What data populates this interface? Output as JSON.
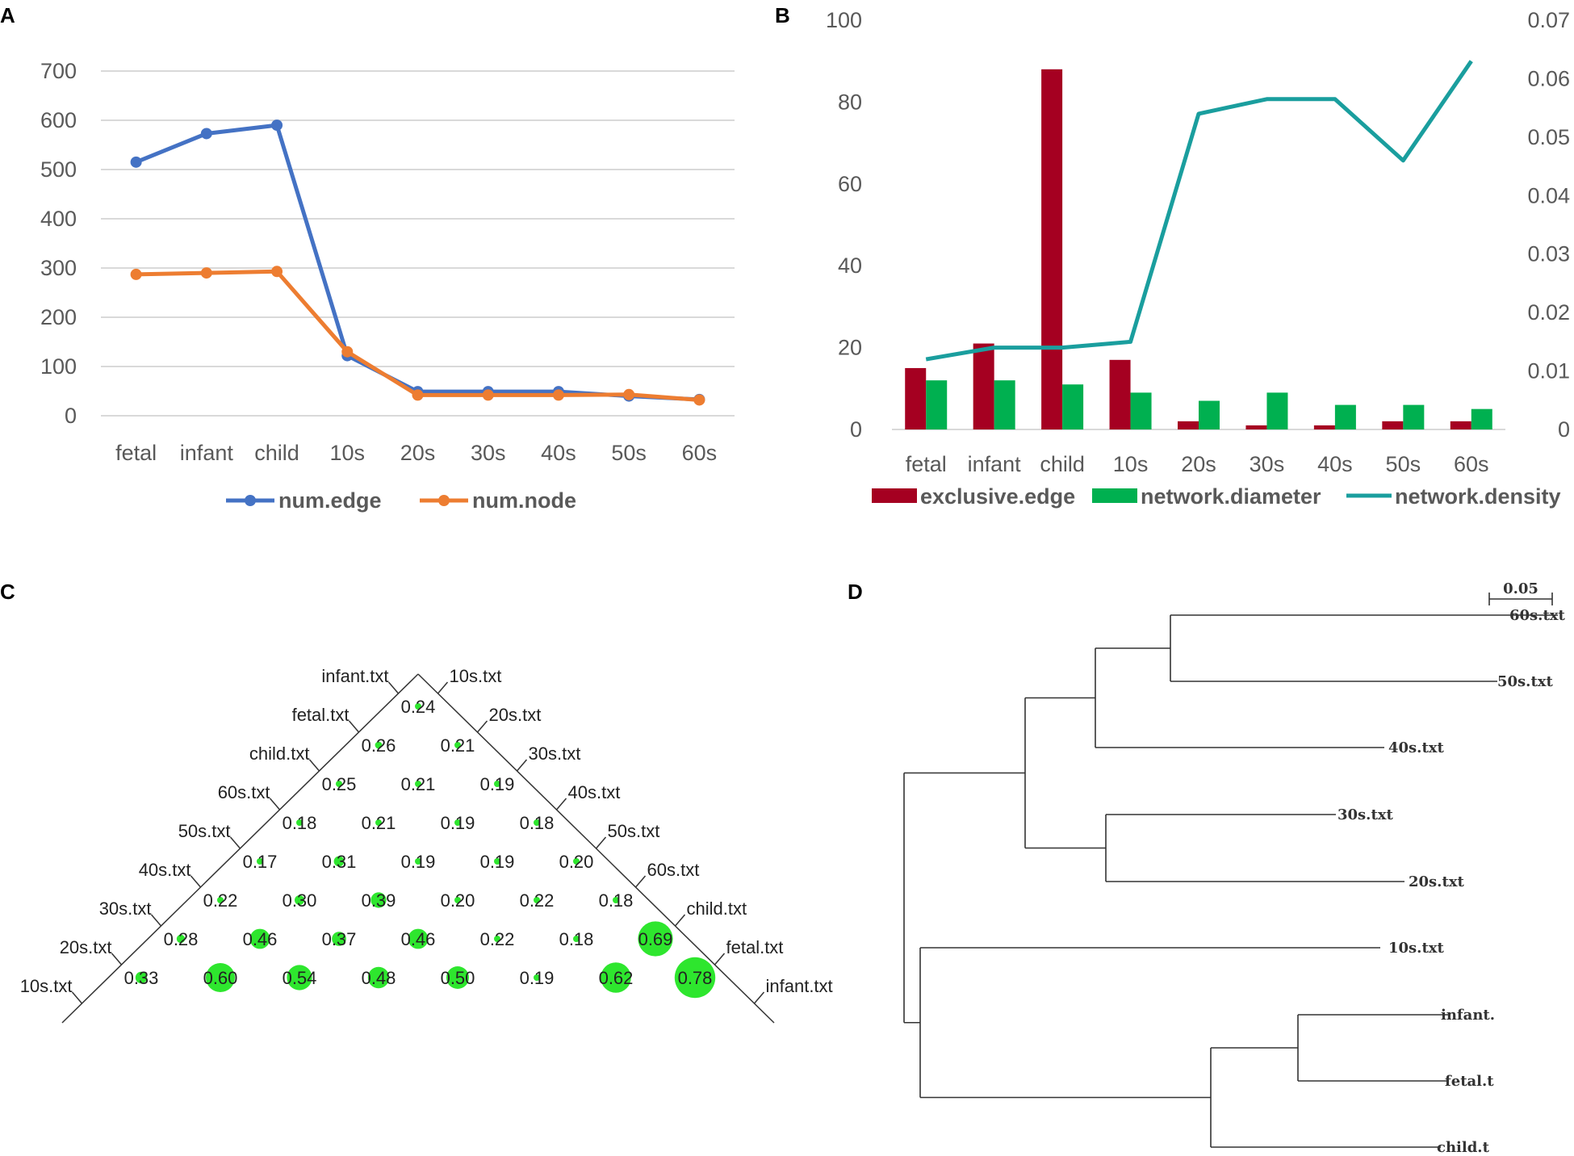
{
  "panels": {
    "a": "A",
    "b": "B",
    "c": "C",
    "d": "D"
  },
  "chart_data": [
    {
      "type": "line",
      "panel": "A",
      "categories": [
        "fetal",
        "infant",
        "child",
        "10s",
        "20s",
        "30s",
        "40s",
        "50s",
        "60s"
      ],
      "ylim": [
        0,
        700
      ],
      "yticks": [
        "0",
        "100",
        "200",
        "300",
        "400",
        "500",
        "600",
        "700"
      ],
      "series": [
        {
          "name": "num.edge",
          "color": "#4472C4",
          "values": [
            515,
            573,
            590,
            122,
            49,
            49,
            49,
            40,
            33
          ]
        },
        {
          "name": "num.node",
          "color": "#ED7D31",
          "values": [
            287,
            290,
            293,
            130,
            42,
            42,
            42,
            43,
            32
          ]
        }
      ],
      "legend": "bottom"
    },
    {
      "type": "bar",
      "panel": "B",
      "categories": [
        "fetal",
        "infant",
        "child",
        "10s",
        "20s",
        "30s",
        "40s",
        "50s",
        "60s"
      ],
      "ylim": [
        0,
        100
      ],
      "yticks": [
        "0",
        "20",
        "40",
        "60",
        "80",
        "100"
      ],
      "y2lim": [
        0,
        0.07
      ],
      "y2ticks": [
        "0",
        "0.01",
        "0.02",
        "0.03",
        "0.04",
        "0.05",
        "0.06",
        "0.07"
      ],
      "series": [
        {
          "name": "exclusive.edge",
          "type": "bar",
          "color": "#A50021",
          "values": [
            15,
            21,
            88,
            17,
            2,
            1,
            1,
            2,
            2
          ]
        },
        {
          "name": "network.diameter",
          "type": "bar",
          "color": "#00B050",
          "values": [
            12,
            12,
            11,
            9,
            7,
            9,
            6,
            6,
            5
          ]
        },
        {
          "name": "network.density",
          "type": "line",
          "axis": "secondary",
          "color": "#1A9E9E",
          "values": [
            0.012,
            0.014,
            0.014,
            0.015,
            0.054,
            0.0565,
            0.0565,
            0.046,
            0.063
          ]
        }
      ],
      "legend": "bottom"
    },
    {
      "type": "heatmap",
      "panel": "C",
      "left_labels": [
        "infant.txt",
        "fetal.txt",
        "child.txt",
        "60s.txt",
        "50s.txt",
        "40s.txt",
        "30s.txt",
        "20s.txt",
        "10s.txt"
      ],
      "right_labels": [
        "10s.txt",
        "20s.txt",
        "30s.txt",
        "40s.txt",
        "50s.txt",
        "60s.txt",
        "child.txt",
        "fetal.txt",
        "infant.txt"
      ],
      "rows": [
        [
          "0.24"
        ],
        [
          "0.26",
          "0.21"
        ],
        [
          "0.25",
          "0.21",
          "0.19"
        ],
        [
          "0.18",
          "0.21",
          "0.19",
          "0.18"
        ],
        [
          "0.17",
          "0.31",
          "0.19",
          "0.19",
          "0.20"
        ],
        [
          "0.22",
          "0.30",
          "0.39",
          "0.20",
          "0.22",
          "0.18"
        ],
        [
          "0.28",
          "0.46",
          "0.37",
          "0.46",
          "0.22",
          "0.18",
          "0.69"
        ],
        [
          "0.33",
          "0.60",
          "0.54",
          "0.48",
          "0.50",
          "0.19",
          "0.62",
          "0.78"
        ]
      ]
    },
    {
      "type": "dendrogram",
      "panel": "D",
      "scale_label": "0.05",
      "leaves": [
        "60s.txt",
        "50s.txt",
        "40s.txt",
        "30s.txt",
        "20s.txt",
        "10s.txt",
        "infant.",
        "fetal.t",
        "child.t"
      ]
    }
  ]
}
